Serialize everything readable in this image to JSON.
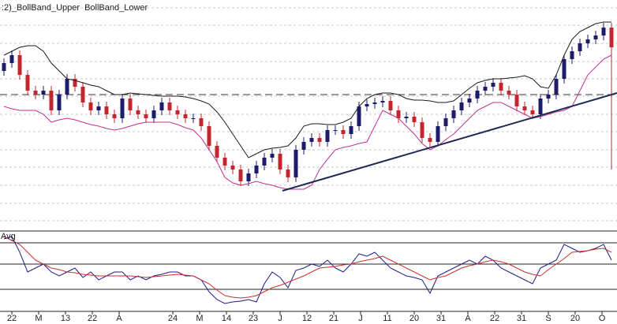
{
  "chart_data": [
    {
      "type": "candlestick",
      "xlim": [
        -0.5,
        77.7
      ],
      "ylim": [
        0,
        290
      ],
      "yticks": [
        10,
        32,
        55,
        78,
        100,
        123,
        145,
        168,
        190,
        212,
        235,
        258,
        280
      ],
      "grid": true,
      "up_color": "#1c1c6b",
      "down_color": "#c4262e",
      "open": [
        200,
        210,
        220,
        195,
        175,
        170,
        175,
        150,
        170,
        190,
        180,
        160,
        150,
        155,
        145,
        140,
        165,
        150,
        145,
        140,
        150,
        160,
        150,
        145,
        140,
        140,
        130,
        105,
        90,
        80,
        75,
        60,
        70,
        80,
        90,
        95,
        75,
        65,
        100,
        110,
        115,
        110,
        125,
        125,
        120,
        130,
        155,
        158,
        160,
        162,
        150,
        140,
        142,
        135,
        115,
        110,
        130,
        140,
        150,
        160,
        165,
        175,
        180,
        185,
        175,
        170,
        155,
        150,
        145,
        165,
        170,
        190,
        215,
        225,
        235,
        240,
        245,
        255
      ],
      "high": [
        216,
        226,
        226,
        201,
        181,
        181,
        181,
        176,
        196,
        196,
        186,
        166,
        161,
        161,
        151,
        171,
        171,
        156,
        151,
        156,
        166,
        166,
        156,
        151,
        146,
        146,
        136,
        111,
        96,
        86,
        81,
        76,
        86,
        96,
        101,
        101,
        81,
        106,
        116,
        121,
        121,
        131,
        131,
        131,
        136,
        161,
        164,
        166,
        168,
        168,
        156,
        148,
        148,
        141,
        121,
        136,
        146,
        156,
        166,
        171,
        181,
        186,
        191,
        191,
        181,
        176,
        161,
        156,
        171,
        176,
        196,
        221,
        231,
        241,
        246,
        251,
        261,
        261
      ],
      "low": [
        194,
        204,
        189,
        169,
        164,
        164,
        144,
        144,
        164,
        174,
        154,
        144,
        144,
        139,
        134,
        134,
        144,
        139,
        134,
        134,
        144,
        144,
        139,
        134,
        134,
        124,
        99,
        84,
        74,
        69,
        54,
        54,
        64,
        74,
        84,
        69,
        59,
        59,
        94,
        104,
        104,
        104,
        119,
        114,
        114,
        124,
        149,
        152,
        154,
        144,
        134,
        134,
        129,
        109,
        104,
        104,
        124,
        134,
        144,
        154,
        159,
        169,
        174,
        169,
        164,
        149,
        144,
        139,
        139,
        159,
        164,
        184,
        209,
        219,
        229,
        234,
        239,
        75
      ],
      "close": [
        210,
        220,
        195,
        175,
        170,
        175,
        150,
        170,
        190,
        180,
        160,
        150,
        155,
        145,
        140,
        165,
        150,
        145,
        140,
        150,
        160,
        150,
        145,
        140,
        140,
        130,
        105,
        90,
        80,
        75,
        60,
        70,
        80,
        90,
        95,
        75,
        65,
        100,
        110,
        115,
        110,
        125,
        125,
        120,
        130,
        155,
        158,
        160,
        162,
        150,
        140,
        142,
        135,
        115,
        110,
        130,
        140,
        150,
        160,
        165,
        175,
        180,
        185,
        175,
        170,
        155,
        150,
        145,
        165,
        170,
        190,
        215,
        225,
        235,
        240,
        245,
        255,
        230
      ],
      "series": [
        {
          "name": ":2)_BollBand_Upper",
          "color": "#1a1a1a",
          "values": [
            220,
            225,
            230,
            232,
            232,
            225,
            210,
            200,
            190,
            188,
            185,
            182,
            180,
            175,
            170,
            170,
            172,
            171,
            170,
            169,
            168,
            168,
            168,
            167,
            165,
            162,
            158,
            148,
            135,
            120,
            105,
            90,
            95,
            100,
            102,
            103,
            105,
            115,
            130,
            133,
            133,
            132,
            132,
            135,
            140,
            155,
            165,
            170,
            172,
            172,
            170,
            165,
            163,
            163,
            162,
            160,
            160,
            162,
            170,
            178,
            185,
            188,
            190,
            190,
            191,
            192,
            194,
            190,
            180,
            178,
            195,
            220,
            240,
            250,
            255,
            260,
            262,
            262
          ]
        },
        {
          "name": "BollBand_Lower",
          "color": "#c0328f",
          "values": [
            155,
            152,
            150,
            150,
            150,
            145,
            135,
            138,
            140,
            138,
            135,
            132,
            130,
            127,
            125,
            127,
            130,
            133,
            135,
            135,
            135,
            135,
            132,
            128,
            125,
            115,
            100,
            85,
            65,
            58,
            55,
            57,
            60,
            57,
            55,
            52,
            50,
            50,
            50,
            55,
            75,
            88,
            100,
            103,
            105,
            108,
            110,
            130,
            150,
            145,
            140,
            130,
            120,
            108,
            100,
            105,
            113,
            120,
            130,
            140,
            150,
            155,
            160,
            160,
            155,
            150,
            145,
            140,
            142,
            145,
            148,
            150,
            155,
            175,
            195,
            205,
            215,
            220
          ]
        }
      ],
      "hlines": [
        170
      ],
      "trendline": {
        "x": [
          35.3,
          77.7
        ],
        "y": [
          48,
          172
        ]
      }
    },
    {
      "type": "line",
      "xlim": [
        -0.5,
        77.7
      ],
      "ylim": [
        0,
        100
      ],
      "hlines": [
        86,
        59,
        27
      ],
      "xticks": [
        {
          "value": 1,
          "label": "22"
        },
        {
          "value": 4.4,
          "label": "M"
        },
        {
          "value": 7.8,
          "label": "13"
        },
        {
          "value": 11.2,
          "label": "22"
        },
        {
          "value": 14.6,
          "label": "A"
        },
        {
          "value": 21.4,
          "label": "24"
        },
        {
          "value": 24.8,
          "label": "M"
        },
        {
          "value": 28.2,
          "label": "14"
        },
        {
          "value": 31.6,
          "label": "23"
        },
        {
          "value": 35,
          "label": "J"
        },
        {
          "value": 38.4,
          "label": "12"
        },
        {
          "value": 41.8,
          "label": "21"
        },
        {
          "value": 45.2,
          "label": "J"
        },
        {
          "value": 48.6,
          "label": "11"
        },
        {
          "value": 52,
          "label": "20"
        },
        {
          "value": 55.4,
          "label": "31"
        },
        {
          "value": 58.8,
          "label": "A"
        },
        {
          "value": 62.2,
          "label": "22"
        },
        {
          "value": 65.6,
          "label": "31"
        },
        {
          "value": 69,
          "label": "S"
        },
        {
          "value": 72.4,
          "label": "20"
        },
        {
          "value": 75.8,
          "label": "O"
        }
      ],
      "series": [
        {
          "color": "#1c1c8a",
          "values": [
            91,
            94,
            74,
            49,
            54,
            59,
            49,
            44,
            49,
            54,
            42,
            49,
            39,
            44,
            49,
            49,
            39,
            44,
            39,
            44,
            46,
            49,
            49,
            44,
            44,
            39,
            24,
            14,
            9,
            11,
            12,
            14,
            11,
            34,
            49,
            42,
            29,
            51,
            54,
            59,
            56,
            64,
            54,
            49,
            59,
            72,
            69,
            74,
            64,
            54,
            49,
            44,
            42,
            39,
            22,
            44,
            49,
            54,
            59,
            64,
            59,
            69,
            64,
            54,
            49,
            44,
            39,
            34,
            54,
            59,
            64,
            84,
            79,
            74,
            76,
            79,
            84,
            64
          ]
        },
        {
          "name": "Avg",
          "color": "#c8322c",
          "values": [
            94,
            89,
            84,
            74,
            64,
            59,
            54,
            52,
            49,
            48,
            46,
            45,
            44,
            44,
            44,
            44,
            44,
            43,
            42,
            43,
            44,
            45,
            46,
            45,
            44,
            39,
            34,
            26,
            19,
            17,
            16,
            17,
            19,
            24,
            29,
            32,
            36,
            40,
            44,
            49,
            54,
            55,
            56,
            58,
            59,
            62,
            64,
            66,
            69,
            64,
            59,
            54,
            49,
            44,
            39,
            42,
            44,
            49,
            54,
            57,
            59,
            62,
            64,
            62,
            59,
            54,
            49,
            46,
            44,
            52,
            59,
            66,
            74,
            75,
            76,
            78,
            79,
            74
          ]
        }
      ]
    }
  ]
}
